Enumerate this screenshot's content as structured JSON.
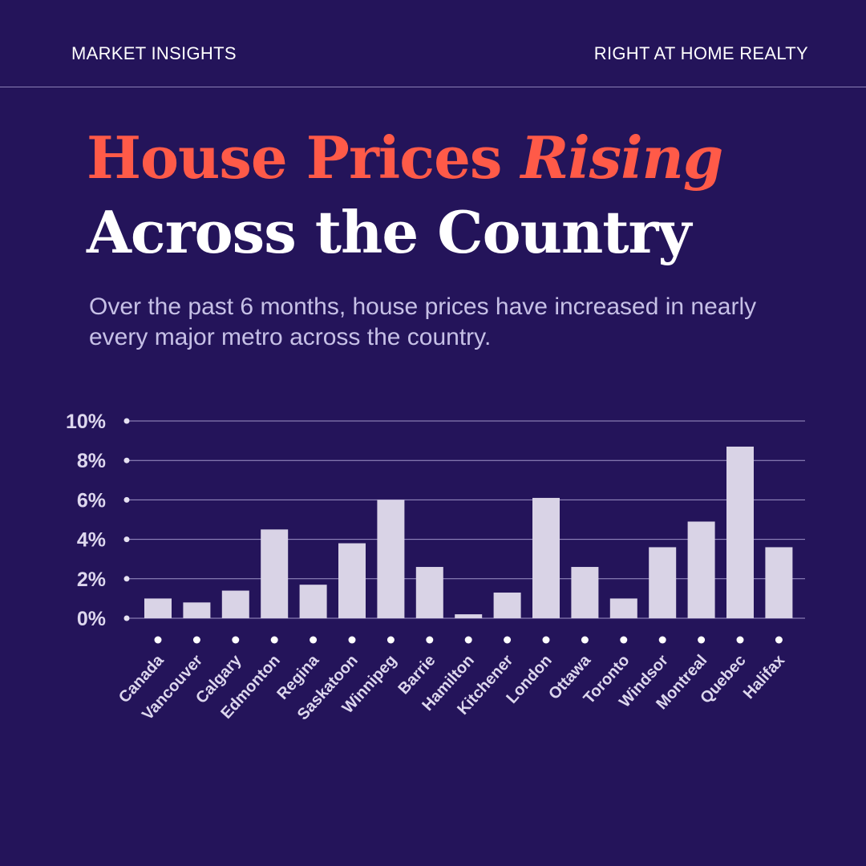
{
  "header": {
    "left_label": "MARKET INSIGHTS",
    "right_label": "RIGHT AT HOME REALTY"
  },
  "headline": {
    "line1_part1": "House Prices ",
    "line1_emphasis": "Rising",
    "line2": "Across the Country"
  },
  "subtitle": "Over the past 6 months, house prices have increased in nearly every major metro across the country.",
  "colors": {
    "background": "#24145a",
    "accent": "#ff5a48",
    "bar": "#d9d3e6",
    "text": "#ffffff",
    "muted_text": "#c6c0e6"
  },
  "chart_data": {
    "type": "bar",
    "title": "",
    "xlabel": "",
    "ylabel": "",
    "ylim": [
      0,
      10
    ],
    "y_ticks": [
      "0%",
      "2%",
      "4%",
      "6%",
      "8%",
      "10%"
    ],
    "grid": true,
    "categories": [
      "Canada",
      "Vancouver",
      "Calgary",
      "Edmonton",
      "Regina",
      "Saskatoon",
      "Winnipeg",
      "Barrie",
      "Hamilton",
      "Kitchener",
      "London",
      "Ottawa",
      "Toronto",
      "Windsor",
      "Montreal",
      "Quebec",
      "Halifax"
    ],
    "values": [
      1.0,
      0.8,
      1.4,
      4.5,
      1.7,
      3.8,
      6.0,
      2.6,
      0.2,
      1.3,
      6.1,
      2.6,
      1.0,
      3.6,
      4.9,
      8.7,
      3.6
    ]
  }
}
